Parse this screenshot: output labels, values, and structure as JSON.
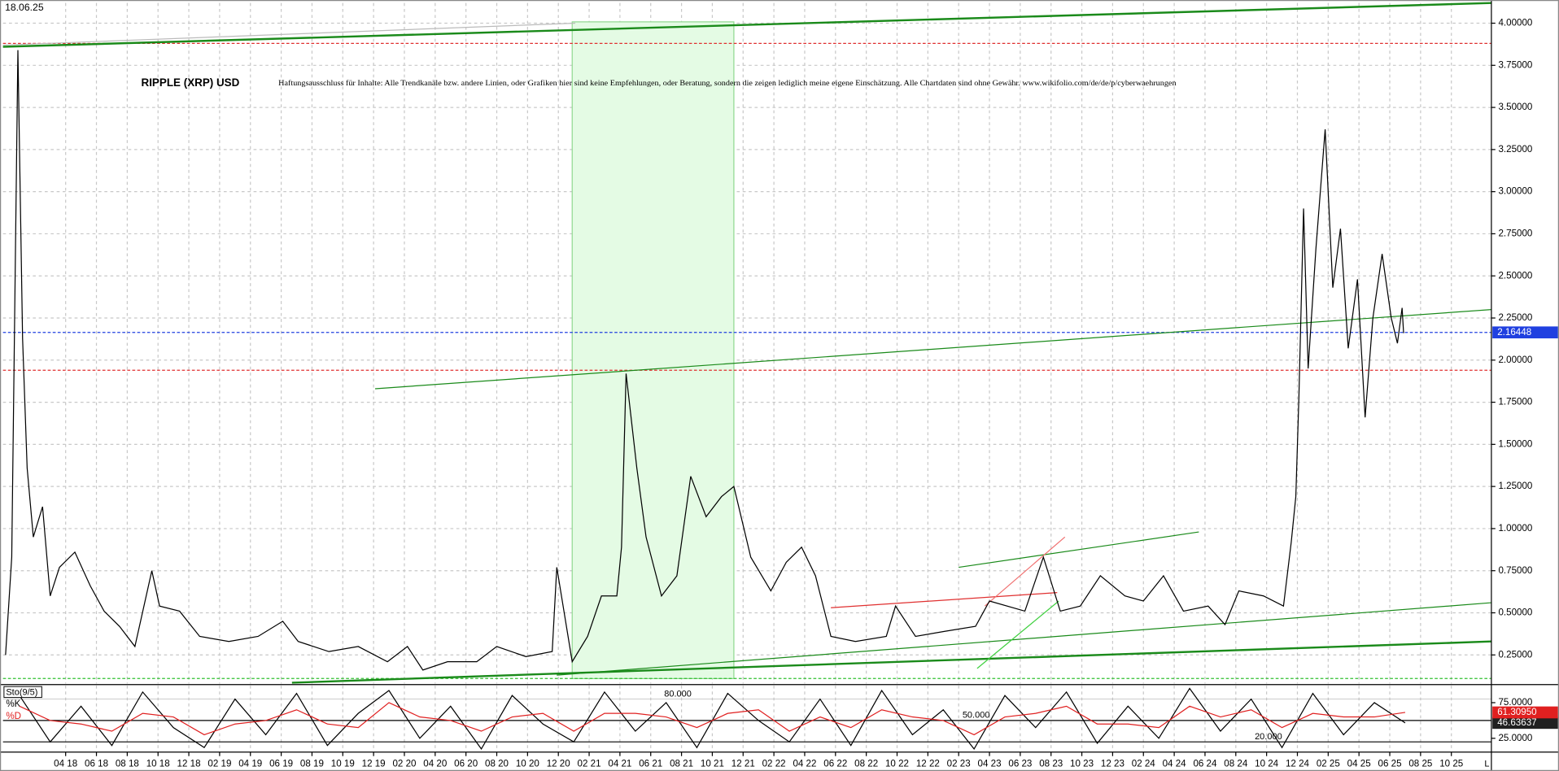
{
  "chart_data": [
    {
      "type": "line",
      "date": "18.06.25",
      "title": "RIPPLE (XRP) USD",
      "disclaimer": "Haftungsausschluss für Inhalte: Alle Trendkanäle bzw. andere Linien, oder Grafiken hier sind keine Empfehlungen, oder Beratung, sondern die zeigen lediglich meine eigene Einschätzung. Alle Chartdaten sind ohne Gewähr. www.wikifolio.com/de/de/p/cyberwaehrungen",
      "color": "#000000",
      "grid": true,
      "xlim": [
        -1.07,
        95.6
      ],
      "ylim": [
        0.08,
        4.12
      ],
      "yticks": [
        {
          "value": 0.25,
          "label": "0.25000"
        },
        {
          "value": 0.5,
          "label": "0.50000"
        },
        {
          "value": 0.75,
          "label": "0.75000"
        },
        {
          "value": 1.0,
          "label": "1.00000"
        },
        {
          "value": 1.25,
          "label": "1.25000"
        },
        {
          "value": 1.5,
          "label": "1.50000"
        },
        {
          "value": 1.75,
          "label": "1.75000"
        },
        {
          "value": 2.0,
          "label": "2.00000"
        },
        {
          "value": 2.25,
          "label": "2.25000"
        },
        {
          "value": 2.5,
          "label": "2.50000"
        },
        {
          "value": 2.75,
          "label": "2.75000"
        },
        {
          "value": 3.0,
          "label": "3.00000"
        },
        {
          "value": 3.25,
          "label": "3.25000"
        },
        {
          "value": 3.5,
          "label": "3.50000"
        },
        {
          "value": 3.75,
          "label": "3.75000"
        },
        {
          "value": 4.0,
          "label": "4.00000"
        }
      ],
      "x": [
        -0.9,
        -0.5,
        -0.1,
        0.2,
        0.5,
        0.9,
        1.5,
        2.0,
        2.6,
        3.6,
        4.6,
        5.5,
        6.5,
        7.5,
        8.6,
        9.1,
        10.4,
        11.7,
        13.6,
        15.5,
        17.1,
        18.1,
        20.1,
        22.0,
        23.9,
        25.2,
        26.2,
        27.8,
        29.7,
        31.0,
        32.9,
        34.6,
        34.9,
        35.9,
        36.9,
        37.8,
        38.8,
        39.1,
        39.4,
        40.1,
        40.7,
        41.7,
        42.7,
        43.6,
        44.6,
        45.6,
        46.4,
        47.5,
        48.8,
        49.8,
        50.8,
        51.7,
        52.7,
        54.3,
        56.3,
        56.9,
        58.2,
        60.1,
        62.1,
        63.0,
        65.3,
        66.5,
        67.6,
        68.9,
        70.2,
        71.8,
        73.0,
        74.3,
        75.6,
        77.2,
        78.3,
        79.2,
        80.8,
        82.1,
        82.6,
        82.9,
        83.1,
        83.4,
        83.7,
        84.2,
        84.8,
        85.3,
        85.8,
        86.3,
        86.9,
        87.4,
        87.9,
        88.5,
        89.1,
        89.5,
        89.8,
        89.9
      ],
      "values": [
        0.25,
        0.83,
        3.84,
        2.13,
        1.36,
        0.95,
        1.13,
        0.6,
        0.77,
        0.86,
        0.66,
        0.51,
        0.42,
        0.3,
        0.75,
        0.54,
        0.51,
        0.36,
        0.33,
        0.36,
        0.45,
        0.33,
        0.27,
        0.3,
        0.21,
        0.3,
        0.16,
        0.21,
        0.21,
        0.3,
        0.24,
        0.27,
        0.77,
        0.21,
        0.36,
        0.6,
        0.6,
        0.89,
        1.92,
        1.36,
        0.95,
        0.6,
        0.72,
        1.31,
        1.07,
        1.19,
        1.25,
        0.83,
        0.63,
        0.8,
        0.89,
        0.72,
        0.36,
        0.33,
        0.36,
        0.54,
        0.36,
        0.39,
        0.42,
        0.57,
        0.51,
        0.83,
        0.51,
        0.54,
        0.72,
        0.6,
        0.57,
        0.72,
        0.51,
        0.54,
        0.43,
        0.63,
        0.6,
        0.54,
        0.92,
        1.19,
        1.78,
        2.9,
        1.95,
        2.66,
        3.37,
        2.43,
        2.78,
        2.07,
        2.48,
        1.66,
        2.25,
        2.63,
        2.25,
        2.1,
        2.31,
        2.16
      ],
      "highlight": [
        35.9,
        46.4
      ],
      "hlines": [
        {
          "value": 3.88,
          "color": "#e03030"
        },
        {
          "value": 2.16448,
          "color": "#2040e0"
        },
        {
          "value": 1.94,
          "color": "#e03030"
        },
        {
          "value": 0.11,
          "color": "#30c030"
        }
      ],
      "trendlines": [
        {
          "x": [
            -1.07,
            95.6
          ],
          "y": [
            3.86,
            4.12
          ],
          "color": "#1a8a1a",
          "width": 2
        },
        {
          "x": [
            -1.07,
            36.1
          ],
          "y": [
            3.87,
            4.0
          ],
          "color": "#bbbbbb",
          "width": 1
        },
        {
          "x": [
            23.1,
            95.6
          ],
          "y": [
            1.83,
            2.3
          ],
          "color": "#1a8a1a",
          "width": 1
        },
        {
          "x": [
            17.7,
            95.6
          ],
          "y": [
            0.085,
            0.33
          ],
          "color": "#1a8a1a",
          "width": 2
        },
        {
          "x": [
            34.9,
            95.6
          ],
          "y": [
            0.13,
            0.56
          ],
          "color": "#1a8a1a",
          "width": 1
        },
        {
          "x": [
            61.0,
            76.6
          ],
          "y": [
            0.77,
            0.98
          ],
          "color": "#1a8a1a",
          "width": 1
        },
        {
          "x": [
            52.7,
            67.4
          ],
          "y": [
            0.53,
            0.62
          ],
          "color": "#e03030",
          "width": 1
        },
        {
          "x": [
            62.2,
            67.5
          ],
          "y": [
            0.17,
            0.57
          ],
          "color": "#40d040",
          "width": 1
        },
        {
          "x": [
            62.7,
            67.9
          ],
          "y": [
            0.54,
            0.95
          ],
          "color": "#f07070",
          "width": 1
        }
      ]
    },
    {
      "type": "line",
      "title": "Sto(9/5)",
      "grid": true,
      "axis_end_label": "L",
      "xlim": [
        -1.07,
        95.6
      ],
      "ylim": [
        7,
        99
      ],
      "yticks": [
        {
          "value": 25,
          "label": "25.0000"
        },
        {
          "value": 75,
          "label": "75.0000"
        }
      ],
      "levels": [
        {
          "value": 80,
          "label": "80.000"
        },
        {
          "value": 50,
          "label": "50.000"
        },
        {
          "value": 20,
          "label": "20.000"
        }
      ],
      "xticks": [
        {
          "value": 3,
          "label": "04 18"
        },
        {
          "value": 5,
          "label": "06 18"
        },
        {
          "value": 7,
          "label": "08 18"
        },
        {
          "value": 9,
          "label": "10 18"
        },
        {
          "value": 11,
          "label": "12 18"
        },
        {
          "value": 13,
          "label": "02 19"
        },
        {
          "value": 15,
          "label": "04 19"
        },
        {
          "value": 17,
          "label": "06 19"
        },
        {
          "value": 19,
          "label": "08 19"
        },
        {
          "value": 21,
          "label": "10 19"
        },
        {
          "value": 23,
          "label": "12 19"
        },
        {
          "value": 25,
          "label": "02 20"
        },
        {
          "value": 27,
          "label": "04 20"
        },
        {
          "value": 29,
          "label": "06 20"
        },
        {
          "value": 31,
          "label": "08 20"
        },
        {
          "value": 33,
          "label": "10 20"
        },
        {
          "value": 35,
          "label": "12 20"
        },
        {
          "value": 37,
          "label": "02 21"
        },
        {
          "value": 39,
          "label": "04 21"
        },
        {
          "value": 41,
          "label": "06 21"
        },
        {
          "value": 43,
          "label": "08 21"
        },
        {
          "value": 45,
          "label": "10 21"
        },
        {
          "value": 47,
          "label": "12 21"
        },
        {
          "value": 49,
          "label": "02 22"
        },
        {
          "value": 51,
          "label": "04 22"
        },
        {
          "value": 53,
          "label": "06 22"
        },
        {
          "value": 55,
          "label": "08 22"
        },
        {
          "value": 57,
          "label": "10 22"
        },
        {
          "value": 59,
          "label": "12 22"
        },
        {
          "value": 61,
          "label": "02 23"
        },
        {
          "value": 63,
          "label": "04 23"
        },
        {
          "value": 65,
          "label": "06 23"
        },
        {
          "value": 67,
          "label": "08 23"
        },
        {
          "value": 69,
          "label": "10 23"
        },
        {
          "value": 71,
          "label": "12 23"
        },
        {
          "value": 73,
          "label": "02 24"
        },
        {
          "value": 75,
          "label": "04 24"
        },
        {
          "value": 77,
          "label": "06 24"
        },
        {
          "value": 79,
          "label": "08 24"
        },
        {
          "value": 81,
          "label": "10 24"
        },
        {
          "value": 83,
          "label": "12 24"
        },
        {
          "value": 85,
          "label": "02 25"
        },
        {
          "value": 87,
          "label": "04 25"
        },
        {
          "value": 89,
          "label": "06 25"
        },
        {
          "value": 91,
          "label": "08 25"
        },
        {
          "value": 93,
          "label": "10 25"
        }
      ],
      "x": [
        0,
        2,
        4,
        6,
        8,
        10,
        12,
        14,
        16,
        18,
        20,
        22,
        24,
        26,
        28,
        30,
        32,
        34,
        36,
        38,
        40,
        42,
        44,
        46,
        48,
        50,
        52,
        54,
        56,
        58,
        60,
        62,
        64,
        66,
        68,
        70,
        72,
        74,
        76,
        78,
        80,
        82,
        84,
        86,
        88,
        90
      ],
      "series": [
        {
          "name": "%K",
          "color": "#000000",
          "last_label": "46.63637",
          "values": [
            85,
            20,
            70,
            15,
            90,
            40,
            12,
            80,
            30,
            88,
            15,
            60,
            92,
            25,
            70,
            10,
            85,
            45,
            20,
            90,
            35,
            75,
            12,
            88,
            50,
            20,
            80,
            15,
            92,
            30,
            65,
            10,
            85,
            40,
            90,
            18,
            70,
            25,
            95,
            35,
            80,
            12,
            88,
            30,
            75,
            46.63637
          ]
        },
        {
          "name": "%D",
          "color": "#e02020",
          "last_label": "61.30950",
          "values": [
            70,
            50,
            45,
            35,
            60,
            55,
            30,
            45,
            50,
            65,
            45,
            40,
            75,
            55,
            50,
            35,
            55,
            60,
            35,
            60,
            60,
            55,
            40,
            60,
            65,
            35,
            55,
            40,
            65,
            55,
            50,
            30,
            55,
            60,
            70,
            45,
            45,
            40,
            70,
            55,
            65,
            40,
            60,
            55,
            55,
            61.3095
          ]
        }
      ]
    }
  ]
}
